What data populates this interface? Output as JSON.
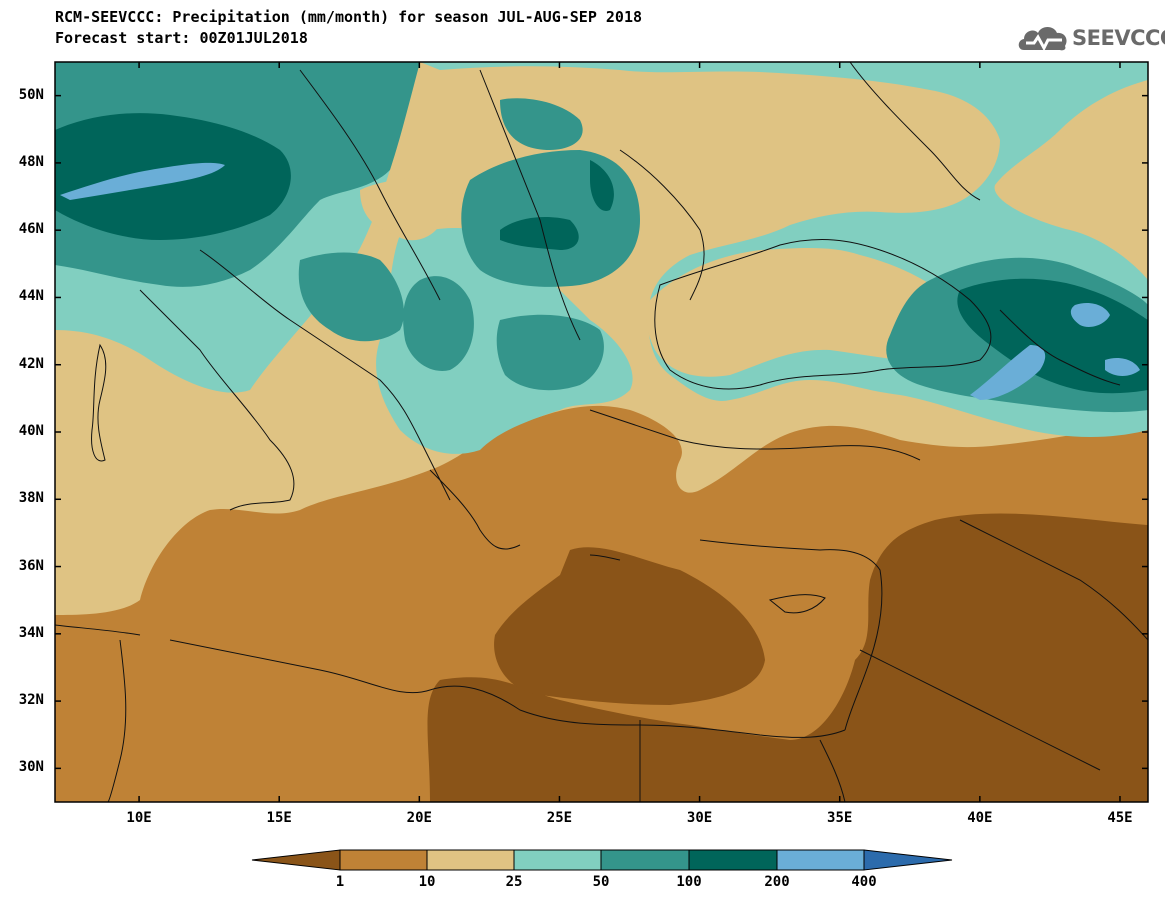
{
  "header": {
    "title_line1": "RCM-SEEVCCC: Precipitation (mm/month) for season JUL-AUG-SEP 2018",
    "title_line2": "Forecast start: 00Z01JUL2018"
  },
  "logo": {
    "text": "SEEVCCC",
    "icon": "cloud-icon"
  },
  "axes": {
    "lat_labels": [
      "50N",
      "48N",
      "46N",
      "44N",
      "42N",
      "40N",
      "38N",
      "36N",
      "34N",
      "32N",
      "30N"
    ],
    "lon_labels": [
      "10E",
      "15E",
      "20E",
      "25E",
      "30E",
      "35E",
      "40E",
      "45E"
    ],
    "lon_range": [
      7,
      46
    ],
    "lat_range": [
      29,
      51
    ]
  },
  "colorbar": {
    "labels": [
      "1",
      "10",
      "25",
      "50",
      "100",
      "200",
      "400"
    ],
    "colors": [
      "#8a5418",
      "#bf8236",
      "#dfc383",
      "#81cfc0",
      "#34958b",
      "#00655a",
      "#6aaed7",
      "#2c6bac"
    ]
  },
  "palette": {
    "sea_deep": "#8a5418",
    "sea_dark": "#bf8236",
    "sand": "#dfc383",
    "teal_light": "#81cfc0",
    "teal": "#34958b",
    "teal_dark": "#00655a",
    "blue_light": "#6aaed7"
  }
}
